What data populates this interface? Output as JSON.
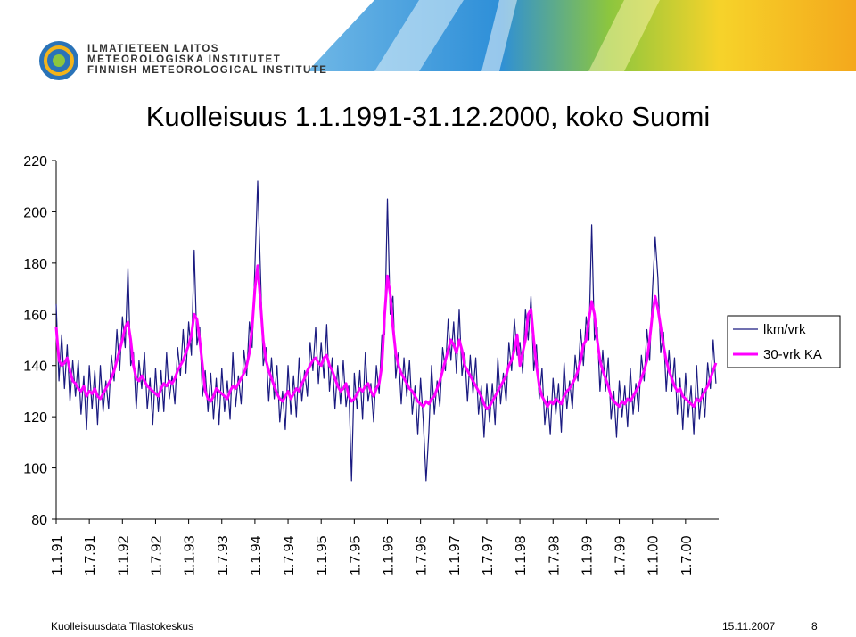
{
  "header": {
    "org_lines": [
      "ILMATIETEEN LAITOS",
      "METEOROLOGISKA INSTITUTET",
      "FINNISH METEOROLOGICAL INSTITUTE"
    ]
  },
  "footer": {
    "source": "Kuolleisuusdata Tilastokeskus",
    "date": "15.11.2007",
    "page": "8"
  },
  "chart_data": {
    "type": "line",
    "title": "Kuolleisuus 1.1.1991-31.12.2000, koko Suomi",
    "categories": [
      "1.1.91",
      null,
      null,
      null,
      null,
      null,
      null,
      null,
      null,
      null,
      null,
      null,
      "1.7.91",
      null,
      null,
      null,
      null,
      null,
      null,
      null,
      null,
      null,
      null,
      null,
      "1.1.92",
      null,
      null,
      null,
      null,
      null,
      null,
      null,
      null,
      null,
      null,
      null,
      "1.7.92",
      null,
      null,
      null,
      null,
      null,
      null,
      null,
      null,
      null,
      null,
      null,
      "1.1.93",
      null,
      null,
      null,
      null,
      null,
      null,
      null,
      null,
      null,
      null,
      null,
      "1.7.93",
      null,
      null,
      null,
      null,
      null,
      null,
      null,
      null,
      null,
      null,
      null,
      "1.1.94",
      null,
      null,
      null,
      null,
      null,
      null,
      null,
      null,
      null,
      null,
      null,
      "1.7.94",
      null,
      null,
      null,
      null,
      null,
      null,
      null,
      null,
      null,
      null,
      null,
      "1.1.95",
      null,
      null,
      null,
      null,
      null,
      null,
      null,
      null,
      null,
      null,
      null,
      "1.7.95",
      null,
      null,
      null,
      null,
      null,
      null,
      null,
      null,
      null,
      null,
      null,
      "1.1.96",
      null,
      null,
      null,
      null,
      null,
      null,
      null,
      null,
      null,
      null,
      null,
      "1.7.96",
      null,
      null,
      null,
      null,
      null,
      null,
      null,
      null,
      null,
      null,
      null,
      "1.1.97",
      null,
      null,
      null,
      null,
      null,
      null,
      null,
      null,
      null,
      null,
      null,
      "1.7.97",
      null,
      null,
      null,
      null,
      null,
      null,
      null,
      null,
      null,
      null,
      null,
      "1.1.98",
      null,
      null,
      null,
      null,
      null,
      null,
      null,
      null,
      null,
      null,
      null,
      "1.7.98",
      null,
      null,
      null,
      null,
      null,
      null,
      null,
      null,
      null,
      null,
      null,
      "1.1.99",
      null,
      null,
      null,
      null,
      null,
      null,
      null,
      null,
      null,
      null,
      null,
      "1.7.99",
      null,
      null,
      null,
      null,
      null,
      null,
      null,
      null,
      null,
      null,
      null,
      "1.1.00",
      null,
      null,
      null,
      null,
      null,
      null,
      null,
      null,
      null,
      null,
      null,
      "1.7.00",
      null,
      null,
      null,
      null,
      null,
      null,
      null,
      null,
      null,
      null,
      null
    ],
    "series": [
      {
        "name": "lkm/vrk",
        "color": "#1a1a80",
        "width": 1.2,
        "values": [
          164,
          134,
          152,
          131,
          148,
          126,
          142,
          128,
          142,
          121,
          136,
          115,
          140,
          123,
          138,
          117,
          140,
          122,
          134,
          123,
          144,
          134,
          154,
          138,
          159,
          147,
          178,
          140,
          145,
          123,
          142,
          131,
          145,
          123,
          135,
          117,
          139,
          122,
          138,
          122,
          145,
          127,
          136,
          125,
          147,
          136,
          154,
          137,
          157,
          144,
          185,
          148,
          155,
          128,
          138,
          122,
          137,
          119,
          135,
          117,
          139,
          122,
          134,
          119,
          145,
          124,
          136,
          125,
          146,
          136,
          157,
          147,
          179,
          212,
          177,
          140,
          147,
          126,
          143,
          127,
          140,
          118,
          130,
          115,
          140,
          121,
          136,
          120,
          143,
          126,
          138,
          128,
          149,
          138,
          155,
          133,
          149,
          135,
          156,
          130,
          143,
          123,
          140,
          125,
          142,
          124,
          132,
          95,
          137,
          123,
          138,
          119,
          145,
          126,
          133,
          118,
          140,
          129,
          152,
          152,
          205,
          160,
          167,
          135,
          145,
          125,
          143,
          128,
          142,
          121,
          132,
          113,
          135,
          118,
          95,
          114,
          140,
          121,
          134,
          124,
          147,
          138,
          158,
          142,
          157,
          137,
          162,
          136,
          145,
          126,
          144,
          129,
          143,
          121,
          132,
          112,
          133,
          118,
          133,
          117,
          143,
          125,
          137,
          126,
          149,
          138,
          158,
          144,
          149,
          137,
          162,
          150,
          167,
          138,
          148,
          127,
          139,
          117,
          128,
          113,
          135,
          121,
          133,
          114,
          141,
          123,
          134,
          123,
          144,
          134,
          154,
          140,
          159,
          150,
          195,
          150,
          155,
          130,
          146,
          130,
          143,
          119,
          130,
          112,
          134,
          120,
          132,
          116,
          139,
          121,
          133,
          122,
          144,
          134,
          154,
          142,
          169,
          190,
          174,
          145,
          153,
          130,
          146,
          130,
          143,
          121,
          135,
          115,
          137,
          120,
          132,
          113,
          140,
          119,
          131,
          120,
          141,
          131,
          150,
          133
        ]
      },
      {
        "name": "30-vrk KA",
        "color": "#ff00ff",
        "width": 3,
        "values": [
          155,
          142,
          140,
          141,
          143,
          138,
          134,
          133,
          131,
          130,
          132,
          128,
          130,
          129,
          131,
          128,
          127,
          129,
          131,
          133,
          135,
          138,
          142,
          146,
          150,
          155,
          157,
          150,
          140,
          135,
          134,
          136,
          134,
          132,
          131,
          130,
          129,
          128,
          131,
          133,
          132,
          134,
          133,
          135,
          138,
          140,
          142,
          145,
          148,
          152,
          160,
          158,
          150,
          140,
          130,
          127,
          126,
          128,
          131,
          130,
          129,
          128,
          127,
          130,
          132,
          131,
          133,
          135,
          137,
          140,
          145,
          155,
          170,
          179,
          165,
          150,
          142,
          138,
          135,
          132,
          129,
          127,
          126,
          128,
          130,
          127,
          129,
          131,
          130,
          133,
          135,
          138,
          140,
          142,
          143,
          141,
          140,
          143,
          144,
          140,
          138,
          135,
          132,
          130,
          131,
          133,
          128,
          126,
          127,
          129,
          131,
          130,
          132,
          133,
          130,
          128,
          131,
          133,
          140,
          160,
          175,
          168,
          155,
          145,
          140,
          137,
          135,
          133,
          131,
          130,
          128,
          126,
          125,
          124,
          126,
          125,
          127,
          128,
          131,
          134,
          138,
          142,
          146,
          150,
          148,
          145,
          150,
          146,
          140,
          138,
          136,
          134,
          132,
          130,
          128,
          125,
          123,
          124,
          126,
          128,
          130,
          132,
          134,
          136,
          140,
          142,
          146,
          152,
          140,
          145,
          150,
          160,
          162,
          150,
          140,
          132,
          128,
          126,
          124,
          126,
          125,
          127,
          126,
          125,
          128,
          130,
          131,
          133,
          135,
          138,
          142,
          148,
          150,
          158,
          165,
          160,
          150,
          142,
          138,
          135,
          132,
          128,
          126,
          125,
          124,
          126,
          125,
          127,
          126,
          128,
          130,
          132,
          135,
          138,
          142,
          150,
          160,
          167,
          162,
          155,
          148,
          142,
          138,
          135,
          132,
          130,
          131,
          128,
          127,
          126,
          125,
          124,
          127,
          126,
          128,
          130,
          132,
          135,
          138,
          141
        ]
      }
    ],
    "ylim": [
      80,
      220
    ],
    "yticks": [
      80,
      100,
      120,
      140,
      160,
      180,
      200,
      220
    ],
    "grid": false,
    "legend": "right"
  }
}
